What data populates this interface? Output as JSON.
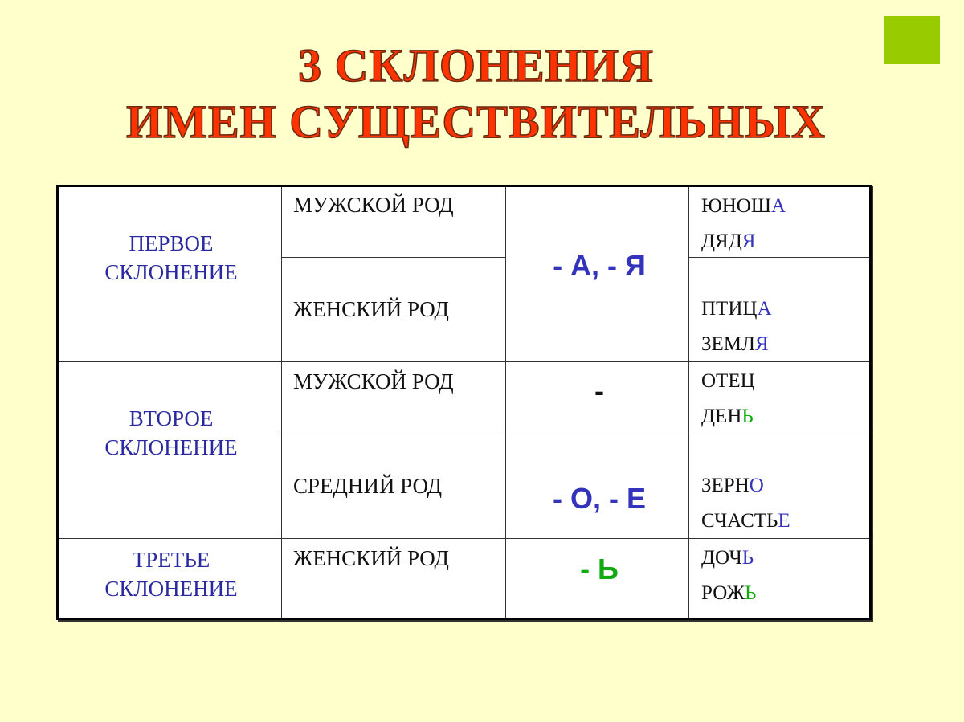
{
  "title": {
    "line1": "3 СКЛОНЕНИЯ",
    "line2": "ИМЕН СУЩЕСТВИТЕЛЬНЫХ"
  },
  "colors": {
    "background": "#ffffcc",
    "title": "#ff3300",
    "accent_square": "#99cc00",
    "blue": "#3333bb",
    "green": "#11aa11"
  },
  "rows": [
    {
      "declension": [
        "ПЕРВОЕ",
        "СКЛОНЕНИЕ"
      ],
      "genders": [
        "МУЖСКОЙ РОД",
        "ЖЕНСКИЙ РОД"
      ],
      "endings": [
        "- А, - Я"
      ],
      "examples": [
        [
          {
            "stem": "ЮНОШ",
            "end": "А",
            "color": "blue"
          },
          {
            "stem": "ДЯД",
            "end": "Я",
            "color": "blue"
          }
        ],
        [
          {
            "stem": "ПТИЦ",
            "end": "А",
            "color": "blue"
          },
          {
            "stem": "ЗЕМЛ",
            "end": "Я",
            "color": "blue"
          }
        ]
      ]
    },
    {
      "declension": [
        "ВТОРОЕ",
        "СКЛОНЕНИЕ"
      ],
      "genders": [
        "МУЖСКОЙ РОД",
        "СРЕДНИЙ РОД"
      ],
      "endings": [
        "-",
        "- О, - Е"
      ],
      "examples": [
        [
          {
            "stem": "ОТЕЦ",
            "end": "",
            "color": ""
          },
          {
            "stem": "ДЕН",
            "end": "Ь",
            "color": "green"
          }
        ],
        [
          {
            "stem": "ЗЕРН",
            "end": "О",
            "color": "blue"
          },
          {
            "stem": "СЧАСТЬ",
            "end": "Е",
            "color": "blue"
          }
        ]
      ]
    },
    {
      "declension": [
        "ТРЕТЬЕ",
        "СКЛОНЕНИЕ"
      ],
      "genders": [
        "ЖЕНСКИЙ РОД"
      ],
      "endings": [
        "- Ь"
      ],
      "examples": [
        [
          {
            "stem": "ДОЧ",
            "end": "Ь",
            "color": "blue"
          },
          {
            "stem": "РОЖ",
            "end": "Ь",
            "color": "green"
          }
        ]
      ]
    }
  ]
}
